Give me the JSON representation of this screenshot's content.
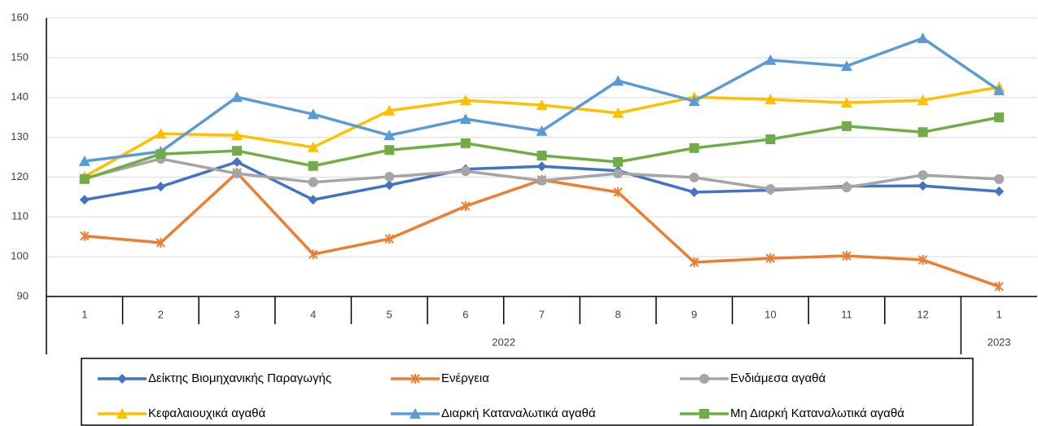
{
  "chart_data": {
    "type": "line",
    "groups": [
      {
        "label": "2022",
        "categories": [
          "1",
          "2",
          "3",
          "4",
          "5",
          "6",
          "7",
          "8",
          "9",
          "10",
          "11",
          "12"
        ]
      },
      {
        "label": "2023",
        "categories": [
          "1"
        ]
      }
    ],
    "ylim": [
      90,
      160
    ],
    "yticks": [
      90,
      100,
      110,
      120,
      130,
      140,
      150,
      160
    ],
    "grid": true,
    "legend": "bottom",
    "series": [
      {
        "name": "Δείκτης Βιομηχανικής Παραγωγής",
        "color": "#4472c4",
        "marker": "diamond",
        "values": [
          114.3,
          117.6,
          123.8,
          114.3,
          118.0,
          122.0,
          122.7,
          121.6,
          116.2,
          116.7,
          117.7,
          117.8,
          116.4
        ]
      },
      {
        "name": "Ενέργεια",
        "color": "#ed7d31",
        "marker": "star",
        "values": [
          105.2,
          103.5,
          121.1,
          100.6,
          104.5,
          112.7,
          119.3,
          116.2,
          98.6,
          99.6,
          100.2,
          99.2,
          92.5
        ]
      },
      {
        "name": "Ενδιάμεσα αγαθά",
        "color": "#a5a5a5",
        "marker": "circle",
        "values": [
          119.7,
          124.6,
          120.9,
          118.7,
          120.1,
          121.5,
          119.1,
          120.9,
          119.9,
          117.0,
          117.4,
          120.5,
          119.5
        ]
      },
      {
        "name": "Κεφαλαιουχικά αγαθά",
        "color": "#ffc000",
        "marker": "triangle",
        "values": [
          120.1,
          130.9,
          130.5,
          127.5,
          136.7,
          139.3,
          138.1,
          136.1,
          140.1,
          139.5,
          138.7,
          139.3,
          142.6
        ]
      },
      {
        "name": "Διαρκή Καταναλωτικά αγαθά",
        "color": "#5b9bd5",
        "marker": "triangle",
        "values": [
          124.0,
          126.4,
          140.1,
          135.8,
          130.5,
          134.6,
          131.6,
          144.2,
          139.1,
          149.4,
          147.9,
          154.9,
          141.8
        ]
      },
      {
        "name": "Μη Διαρκή Καταναλωτικά αγαθά",
        "color": "#70ad47",
        "marker": "square",
        "values": [
          119.5,
          125.8,
          126.6,
          122.8,
          126.8,
          128.5,
          125.4,
          123.8,
          127.3,
          129.5,
          132.8,
          131.3,
          135.0
        ]
      }
    ]
  }
}
